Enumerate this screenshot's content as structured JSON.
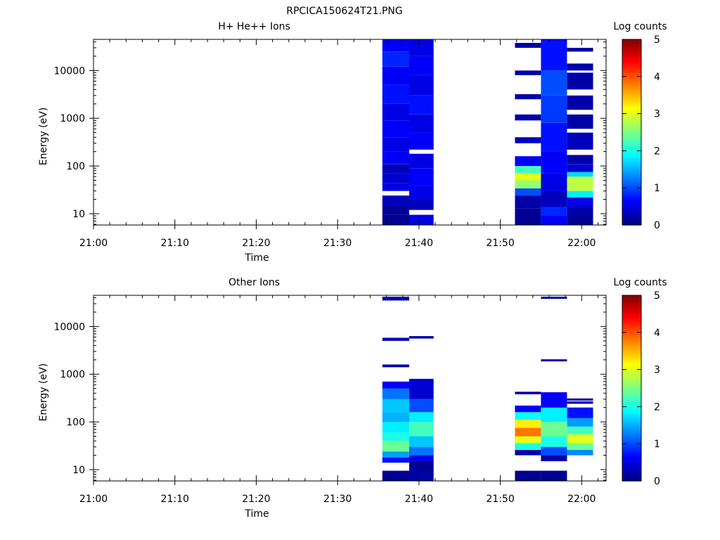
{
  "figure": {
    "title": "RPCICA150624T21.PNG"
  },
  "chart_data": [
    {
      "type": "heatmap",
      "title": "H+ He++ Ions",
      "xlabel": "Time",
      "ylabel": "Energy (eV)",
      "x_tick_labels": [
        "21:00",
        "21:10",
        "21:20",
        "21:30",
        "21:40",
        "21:50",
        "22:00"
      ],
      "x_tick_minutes": [
        0,
        10,
        20,
        30,
        40,
        50,
        60
      ],
      "xlim_minutes": [
        0,
        63
      ],
      "y_scale": "log",
      "ylim": [
        5.8,
        45000
      ],
      "y_tick_labels": [
        "10",
        "100",
        "1000",
        "10000"
      ],
      "y_tick_values": [
        10,
        100,
        1000,
        10000
      ],
      "colorbar": {
        "label": "Log counts",
        "ticks": [
          "0",
          "1",
          "2",
          "3",
          "4",
          "5"
        ],
        "range": [
          0,
          5
        ],
        "colormap": "jet"
      },
      "columns": [
        {
          "t_start": 35.5,
          "t_end": 38.8,
          "bins": [
            {
              "e_low": 5.8,
              "e_high": 9.5,
              "value": 0.1
            },
            {
              "e_low": 9.5,
              "e_high": 14,
              "value": 0.1
            },
            {
              "e_low": 14,
              "e_high": 24,
              "value": 0.3
            },
            {
              "e_low": 30,
              "e_high": 44,
              "value": 0.5
            },
            {
              "e_low": 44,
              "e_high": 70,
              "value": 0.4
            },
            {
              "e_low": 70,
              "e_high": 110,
              "value": 0.3
            },
            {
              "e_low": 110,
              "e_high": 200,
              "value": 0.6
            },
            {
              "e_low": 200,
              "e_high": 400,
              "value": 0.5
            },
            {
              "e_low": 400,
              "e_high": 900,
              "value": 0.6
            },
            {
              "e_low": 900,
              "e_high": 2000,
              "value": 0.5
            },
            {
              "e_low": 2000,
              "e_high": 5000,
              "value": 0.7
            },
            {
              "e_low": 5000,
              "e_high": 12000,
              "value": 0.6
            },
            {
              "e_low": 12000,
              "e_high": 25000,
              "value": 0.8
            },
            {
              "e_low": 25000,
              "e_high": 45000,
              "value": 0.6
            }
          ]
        },
        {
          "t_start": 38.8,
          "t_end": 41.8,
          "bins": [
            {
              "e_low": 5.8,
              "e_high": 9.5,
              "value": 0.5
            },
            {
              "e_low": 12,
              "e_high": 20,
              "value": 0.3
            },
            {
              "e_low": 20,
              "e_high": 40,
              "value": 0.5
            },
            {
              "e_low": 40,
              "e_high": 90,
              "value": 0.6
            },
            {
              "e_low": 90,
              "e_high": 180,
              "value": 0.5
            },
            {
              "e_low": 220,
              "e_high": 500,
              "value": 0.6
            },
            {
              "e_low": 500,
              "e_high": 1200,
              "value": 0.5
            },
            {
              "e_low": 1200,
              "e_high": 3000,
              "value": 0.7
            },
            {
              "e_low": 3000,
              "e_high": 8000,
              "value": 0.5
            },
            {
              "e_low": 8000,
              "e_high": 20000,
              "value": 0.6
            },
            {
              "e_low": 20000,
              "e_high": 45000,
              "value": 0.5
            }
          ]
        },
        {
          "t_start": 51.8,
          "t_end": 55.0,
          "bins": [
            {
              "e_low": 5.8,
              "e_high": 13,
              "value": 0.1
            },
            {
              "e_low": 13,
              "e_high": 24,
              "value": 0.2
            },
            {
              "e_low": 24,
              "e_high": 34,
              "value": 1.0
            },
            {
              "e_low": 34,
              "e_high": 50,
              "value": 2.6
            },
            {
              "e_low": 50,
              "e_high": 70,
              "value": 3.0
            },
            {
              "e_low": 70,
              "e_high": 100,
              "value": 2.2
            },
            {
              "e_low": 100,
              "e_high": 160,
              "value": 0.6
            },
            {
              "e_low": 300,
              "e_high": 400,
              "value": 0.3
            },
            {
              "e_low": 900,
              "e_high": 1200,
              "value": 0.2
            },
            {
              "e_low": 2500,
              "e_high": 3200,
              "value": 0.2
            },
            {
              "e_low": 8000,
              "e_high": 10000,
              "value": 0.2
            },
            {
              "e_low": 30000,
              "e_high": 38000,
              "value": 0.2
            }
          ]
        },
        {
          "t_start": 55.0,
          "t_end": 58.2,
          "bins": [
            {
              "e_low": 5.8,
              "e_high": 9,
              "value": 0.6
            },
            {
              "e_low": 9,
              "e_high": 14,
              "value": 0.8
            },
            {
              "e_low": 14,
              "e_high": 30,
              "value": 0.3
            },
            {
              "e_low": 30,
              "e_high": 70,
              "value": 0.5
            },
            {
              "e_low": 70,
              "e_high": 200,
              "value": 0.6
            },
            {
              "e_low": 200,
              "e_high": 800,
              "value": 0.7
            },
            {
              "e_low": 800,
              "e_high": 3000,
              "value": 0.9
            },
            {
              "e_low": 3000,
              "e_high": 10000,
              "value": 1.0
            },
            {
              "e_low": 10000,
              "e_high": 45000,
              "value": 0.7
            }
          ]
        },
        {
          "t_start": 58.2,
          "t_end": 61.4,
          "bins": [
            {
              "e_low": 5.8,
              "e_high": 9,
              "value": 0.1
            },
            {
              "e_low": 9,
              "e_high": 14,
              "value": 0.2
            },
            {
              "e_low": 14,
              "e_high": 22,
              "value": 0.5
            },
            {
              "e_low": 22,
              "e_high": 30,
              "value": 1.8
            },
            {
              "e_low": 30,
              "e_high": 60,
              "value": 2.8
            },
            {
              "e_low": 60,
              "e_high": 75,
              "value": 1.7
            },
            {
              "e_low": 75,
              "e_high": 110,
              "value": 0.4
            },
            {
              "e_low": 110,
              "e_high": 170,
              "value": 0.2
            },
            {
              "e_low": 220,
              "e_high": 500,
              "value": 0.3
            },
            {
              "e_low": 600,
              "e_high": 1200,
              "value": 0.2
            },
            {
              "e_low": 1500,
              "e_high": 3000,
              "value": 0.2
            },
            {
              "e_low": 4000,
              "e_high": 9000,
              "value": 0.2
            },
            {
              "e_low": 10000,
              "e_high": 14000,
              "value": 0.2
            },
            {
              "e_low": 25000,
              "e_high": 30000,
              "value": 0.2
            }
          ]
        }
      ]
    },
    {
      "type": "heatmap",
      "title": "Other Ions",
      "xlabel": "Time",
      "ylabel": "Energy (eV)",
      "x_tick_labels": [
        "21:00",
        "21:10",
        "21:20",
        "21:30",
        "21:40",
        "21:50",
        "22:00"
      ],
      "x_tick_minutes": [
        0,
        10,
        20,
        30,
        40,
        50,
        60
      ],
      "xlim_minutes": [
        0,
        63
      ],
      "y_scale": "log",
      "ylim": [
        5.8,
        45000
      ],
      "y_tick_labels": [
        "10",
        "100",
        "1000",
        "10000"
      ],
      "y_tick_values": [
        10,
        100,
        1000,
        10000
      ],
      "colorbar": {
        "label": "Log counts",
        "ticks": [
          "0",
          "1",
          "2",
          "3",
          "4",
          "5"
        ],
        "range": [
          0,
          5
        ],
        "colormap": "jet"
      },
      "columns": [
        {
          "t_start": 35.5,
          "t_end": 38.8,
          "bins": [
            {
              "e_low": 5.8,
              "e_high": 9.5,
              "value": 0.1
            },
            {
              "e_low": 14,
              "e_high": 18,
              "value": 0.7
            },
            {
              "e_low": 18,
              "e_high": 24,
              "value": 1.4
            },
            {
              "e_low": 24,
              "e_high": 40,
              "value": 2.4
            },
            {
              "e_low": 40,
              "e_high": 60,
              "value": 2.0
            },
            {
              "e_low": 60,
              "e_high": 100,
              "value": 1.8
            },
            {
              "e_low": 100,
              "e_high": 160,
              "value": 1.5
            },
            {
              "e_low": 160,
              "e_high": 300,
              "value": 1.6
            },
            {
              "e_low": 300,
              "e_high": 500,
              "value": 1.2
            },
            {
              "e_low": 500,
              "e_high": 700,
              "value": 0.6
            },
            {
              "e_low": 1400,
              "e_high": 1600,
              "value": 0.2
            },
            {
              "e_low": 5000,
              "e_high": 5800,
              "value": 0.2
            },
            {
              "e_low": 35000,
              "e_high": 42000,
              "value": 0.2
            }
          ]
        },
        {
          "t_start": 38.8,
          "t_end": 41.8,
          "bins": [
            {
              "e_low": 5.8,
              "e_high": 9.5,
              "value": 0.2
            },
            {
              "e_low": 9.5,
              "e_high": 15,
              "value": 0.1
            },
            {
              "e_low": 15,
              "e_high": 20,
              "value": 0.5
            },
            {
              "e_low": 20,
              "e_high": 30,
              "value": 1.2
            },
            {
              "e_low": 30,
              "e_high": 50,
              "value": 1.6
            },
            {
              "e_low": 50,
              "e_high": 100,
              "value": 2.2
            },
            {
              "e_low": 100,
              "e_high": 160,
              "value": 1.8
            },
            {
              "e_low": 160,
              "e_high": 300,
              "value": 1.0
            },
            {
              "e_low": 300,
              "e_high": 800,
              "value": 0.4
            },
            {
              "e_low": 5600,
              "e_high": 6300,
              "value": 0.2
            }
          ]
        },
        {
          "t_start": 51.8,
          "t_end": 55.0,
          "bins": [
            {
              "e_low": 5.8,
              "e_high": 9.5,
              "value": 0.1
            },
            {
              "e_low": 20,
              "e_high": 26,
              "value": 0.2
            },
            {
              "e_low": 26,
              "e_high": 36,
              "value": 2.0
            },
            {
              "e_low": 36,
              "e_high": 50,
              "value": 3.0
            },
            {
              "e_low": 50,
              "e_high": 75,
              "value": 3.8
            },
            {
              "e_low": 75,
              "e_high": 110,
              "value": 3.2
            },
            {
              "e_low": 110,
              "e_high": 160,
              "value": 1.9
            },
            {
              "e_low": 160,
              "e_high": 220,
              "value": 0.6
            },
            {
              "e_low": 380,
              "e_high": 430,
              "value": 0.2
            }
          ]
        },
        {
          "t_start": 55.0,
          "t_end": 58.2,
          "bins": [
            {
              "e_low": 5.8,
              "e_high": 9.5,
              "value": 0.1
            },
            {
              "e_low": 15,
              "e_high": 20,
              "value": 0.2
            },
            {
              "e_low": 20,
              "e_high": 30,
              "value": 1.0
            },
            {
              "e_low": 30,
              "e_high": 50,
              "value": 2.0
            },
            {
              "e_low": 50,
              "e_high": 100,
              "value": 2.4
            },
            {
              "e_low": 100,
              "e_high": 200,
              "value": 1.8
            },
            {
              "e_low": 200,
              "e_high": 420,
              "value": 0.6
            },
            {
              "e_low": 1850,
              "e_high": 2050,
              "value": 0.2
            },
            {
              "e_low": 38000,
              "e_high": 42000,
              "value": 0.2
            }
          ]
        },
        {
          "t_start": 58.2,
          "t_end": 61.4,
          "bins": [
            {
              "e_low": 20,
              "e_high": 26,
              "value": 1.3
            },
            {
              "e_low": 26,
              "e_high": 36,
              "value": 2.4
            },
            {
              "e_low": 36,
              "e_high": 55,
              "value": 3.0
            },
            {
              "e_low": 55,
              "e_high": 80,
              "value": 2.2
            },
            {
              "e_low": 80,
              "e_high": 120,
              "value": 1.4
            },
            {
              "e_low": 120,
              "e_high": 200,
              "value": 0.7
            },
            {
              "e_low": 240,
              "e_high": 270,
              "value": 0.3
            },
            {
              "e_low": 280,
              "e_high": 310,
              "value": 0.2
            }
          ]
        }
      ]
    }
  ]
}
